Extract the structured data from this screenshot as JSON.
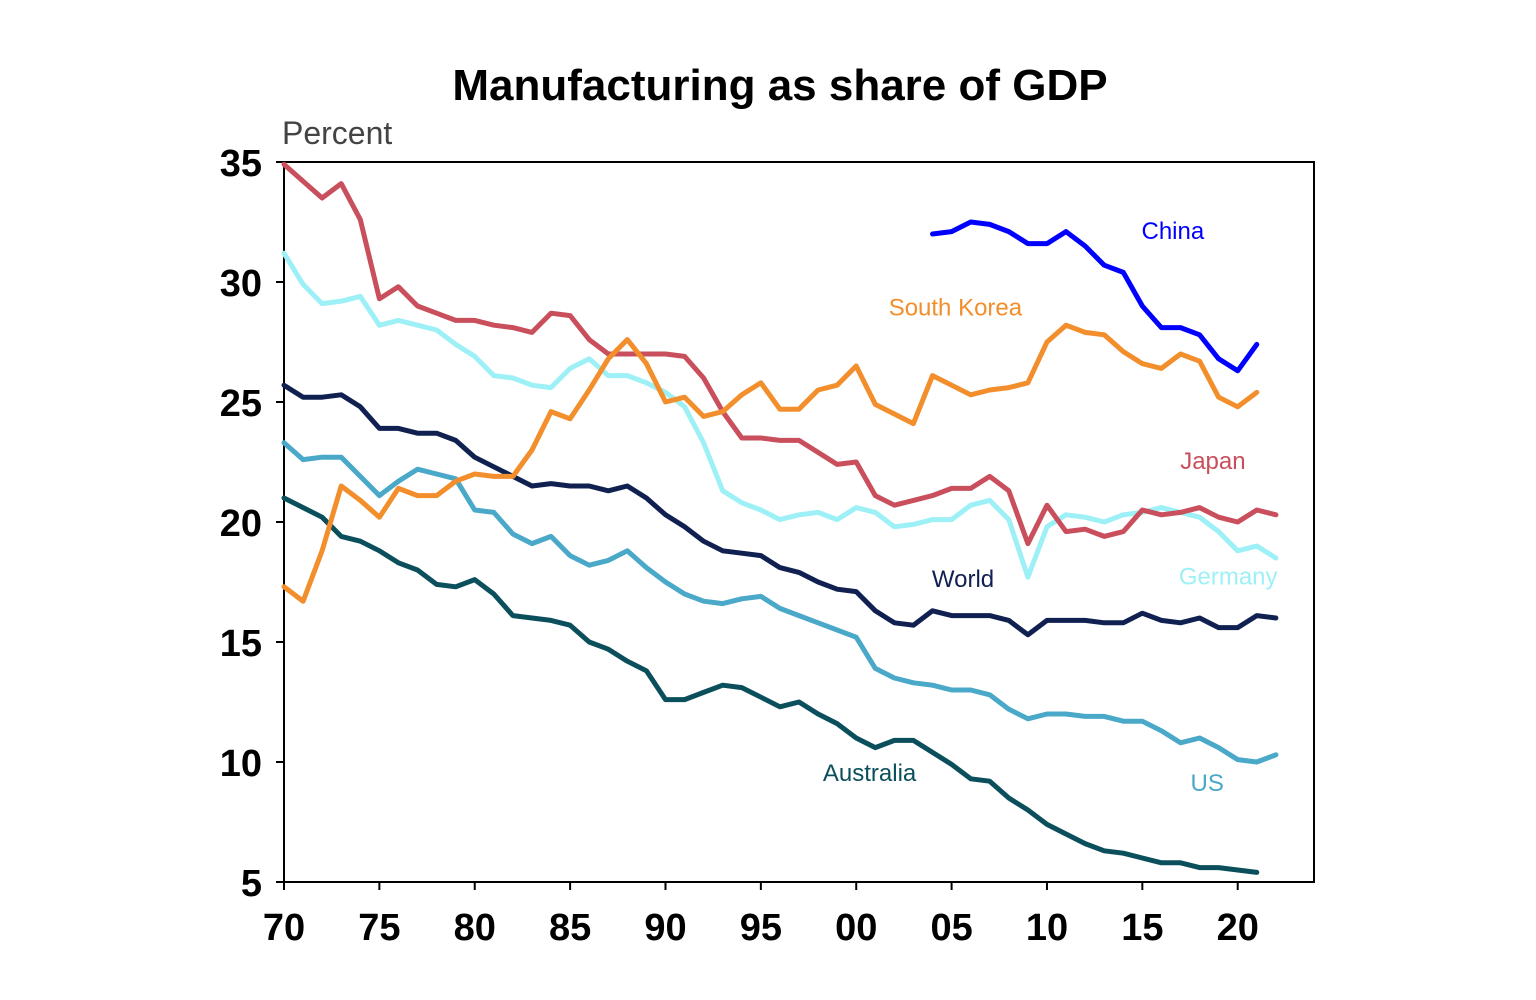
{
  "chart_data": {
    "type": "line",
    "title": "Manufacturing as share of GDP",
    "ylabel": "Percent",
    "xlabel": "",
    "ylim": [
      5,
      35
    ],
    "xlim": [
      1970,
      2024
    ],
    "grid": false,
    "legend": "inline labels",
    "y_ticks": [
      {
        "value": 35,
        "label": "35"
      },
      {
        "value": 30,
        "label": "30"
      },
      {
        "value": 25,
        "label": "25"
      },
      {
        "value": 20,
        "label": "20"
      },
      {
        "value": 15,
        "label": "15"
      },
      {
        "value": 10,
        "label": "10"
      },
      {
        "value": 5,
        "label": "5"
      }
    ],
    "x_ticks": [
      {
        "value": 1970,
        "label": "70"
      },
      {
        "value": 1975,
        "label": "75"
      },
      {
        "value": 1980,
        "label": "80"
      },
      {
        "value": 1985,
        "label": "85"
      },
      {
        "value": 1990,
        "label": "90"
      },
      {
        "value": 1995,
        "label": "95"
      },
      {
        "value": 2000,
        "label": "00"
      },
      {
        "value": 2005,
        "label": "05"
      },
      {
        "value": 2010,
        "label": "10"
      },
      {
        "value": 2015,
        "label": "15"
      },
      {
        "value": 2020,
        "label": "20"
      }
    ],
    "series": [
      {
        "id": "china",
        "name": "China",
        "color": "#0000ff",
        "label_at": {
          "x": 2016.6,
          "y": 31.8
        },
        "x": [
          2004,
          2005,
          2006,
          2007,
          2008,
          2009,
          2010,
          2011,
          2012,
          2013,
          2014,
          2015,
          2016,
          2017,
          2018,
          2019,
          2020,
          2021
        ],
        "y": [
          32.0,
          32.1,
          32.5,
          32.4,
          32.1,
          31.6,
          31.6,
          32.1,
          31.5,
          30.7,
          30.4,
          29.0,
          28.1,
          28.1,
          27.8,
          26.8,
          26.3,
          27.4
        ]
      },
      {
        "id": "south-korea",
        "name": "South Korea",
        "color": "#f28e2b",
        "label_at": {
          "x": 2005.2,
          "y": 28.6
        },
        "x": [
          1970,
          1971,
          1972,
          1973,
          1974,
          1975,
          1976,
          1977,
          1978,
          1979,
          1980,
          1981,
          1982,
          1983,
          1984,
          1985,
          1986,
          1987,
          1988,
          1989,
          1990,
          1991,
          1992,
          1993,
          1994,
          1995,
          1996,
          1997,
          1998,
          1999,
          2000,
          2001,
          2002,
          2003,
          2004,
          2005,
          2006,
          2007,
          2008,
          2009,
          2010,
          2011,
          2012,
          2013,
          2014,
          2015,
          2016,
          2017,
          2018,
          2019,
          2020,
          2021
        ],
        "y": [
          17.3,
          16.7,
          18.8,
          21.5,
          20.9,
          20.2,
          21.4,
          21.1,
          21.1,
          21.7,
          22.0,
          21.9,
          21.9,
          23.0,
          24.6,
          24.3,
          25.5,
          26.8,
          27.6,
          26.6,
          25.0,
          25.2,
          24.4,
          24.6,
          25.3,
          25.8,
          24.7,
          24.7,
          25.5,
          25.7,
          26.5,
          24.9,
          24.5,
          24.1,
          26.1,
          25.7,
          25.3,
          25.5,
          25.6,
          25.8,
          27.5,
          28.2,
          27.9,
          27.8,
          27.1,
          26.6,
          26.4,
          27.0,
          26.7,
          25.2,
          24.8,
          25.4
        ]
      },
      {
        "id": "japan",
        "name": "Japan",
        "color": "#c94f5c",
        "label_at": {
          "x": 2018.7,
          "y": 22.2
        },
        "x": [
          1970,
          1971,
          1972,
          1973,
          1974,
          1975,
          1976,
          1977,
          1978,
          1979,
          1980,
          1981,
          1982,
          1983,
          1984,
          1985,
          1986,
          1987,
          1988,
          1989,
          1990,
          1991,
          1992,
          1993,
          1994,
          1995,
          1996,
          1997,
          1998,
          1999,
          2000,
          2001,
          2002,
          2003,
          2004,
          2005,
          2006,
          2007,
          2008,
          2009,
          2010,
          2011,
          2012,
          2013,
          2014,
          2015,
          2016,
          2017,
          2018,
          2019,
          2020,
          2021,
          2022
        ],
        "y": [
          34.9,
          34.2,
          33.5,
          34.1,
          32.6,
          29.3,
          29.8,
          29.0,
          28.7,
          28.4,
          28.4,
          28.2,
          28.1,
          27.9,
          28.7,
          28.6,
          27.6,
          27.0,
          27.0,
          27.0,
          27.0,
          26.9,
          26.0,
          24.6,
          23.5,
          23.5,
          23.4,
          23.4,
          22.9,
          22.4,
          22.5,
          21.1,
          20.7,
          20.9,
          21.1,
          21.4,
          21.4,
          21.9,
          21.3,
          19.1,
          20.7,
          19.6,
          19.7,
          19.4,
          19.6,
          20.5,
          20.3,
          20.4,
          20.6,
          20.2,
          20.0,
          20.5,
          20.3
        ]
      },
      {
        "id": "germany",
        "name": "Germany",
        "color": "#9ef0f7",
        "label_at": {
          "x": 2019.5,
          "y": 17.4
        },
        "x": [
          1970,
          1971,
          1972,
          1973,
          1974,
          1975,
          1976,
          1977,
          1978,
          1979,
          1980,
          1981,
          1982,
          1983,
          1984,
          1985,
          1986,
          1987,
          1988,
          1989,
          1990,
          1991,
          1992,
          1993,
          1994,
          1995,
          1996,
          1997,
          1998,
          1999,
          2000,
          2001,
          2002,
          2003,
          2004,
          2005,
          2006,
          2007,
          2008,
          2009,
          2010,
          2011,
          2012,
          2013,
          2014,
          2015,
          2016,
          2017,
          2018,
          2019,
          2020,
          2021,
          2022
        ],
        "y": [
          31.2,
          29.9,
          29.1,
          29.2,
          29.4,
          28.2,
          28.4,
          28.2,
          28.0,
          27.4,
          26.9,
          26.1,
          26.0,
          25.7,
          25.6,
          26.4,
          26.8,
          26.1,
          26.1,
          25.8,
          25.4,
          24.8,
          23.3,
          21.3,
          20.8,
          20.5,
          20.1,
          20.3,
          20.4,
          20.1,
          20.6,
          20.4,
          19.8,
          19.9,
          20.1,
          20.1,
          20.7,
          20.9,
          20.1,
          17.7,
          19.8,
          20.3,
          20.2,
          20.0,
          20.3,
          20.4,
          20.6,
          20.4,
          20.2,
          19.6,
          18.8,
          19.0,
          18.5
        ]
      },
      {
        "id": "world",
        "name": "World",
        "color": "#102050",
        "label_at": {
          "x": 2005.6,
          "y": 17.3
        },
        "x": [
          1970,
          1971,
          1972,
          1973,
          1974,
          1975,
          1976,
          1977,
          1978,
          1979,
          1980,
          1981,
          1982,
          1983,
          1984,
          1985,
          1986,
          1987,
          1988,
          1989,
          1990,
          1991,
          1992,
          1993,
          1994,
          1995,
          1996,
          1997,
          1998,
          1999,
          2000,
          2001,
          2002,
          2003,
          2004,
          2005,
          2006,
          2007,
          2008,
          2009,
          2010,
          2011,
          2012,
          2013,
          2014,
          2015,
          2016,
          2017,
          2018,
          2019,
          2020,
          2021,
          2022
        ],
        "y": [
          25.7,
          25.2,
          25.2,
          25.3,
          24.8,
          23.9,
          23.9,
          23.7,
          23.7,
          23.4,
          22.7,
          22.3,
          21.9,
          21.5,
          21.6,
          21.5,
          21.5,
          21.3,
          21.5,
          21.0,
          20.3,
          19.8,
          19.2,
          18.8,
          18.7,
          18.6,
          18.1,
          17.9,
          17.5,
          17.2,
          17.1,
          16.3,
          15.8,
          15.7,
          16.3,
          16.1,
          16.1,
          16.1,
          15.9,
          15.3,
          15.9,
          15.9,
          15.9,
          15.8,
          15.8,
          16.2,
          15.9,
          15.8,
          16.0,
          15.6,
          15.6,
          16.1,
          16.0
        ]
      },
      {
        "id": "us",
        "name": "US",
        "color": "#4aa8c8",
        "label_at": {
          "x": 2018.4,
          "y": 8.8
        },
        "x": [
          1970,
          1971,
          1972,
          1973,
          1974,
          1975,
          1976,
          1977,
          1978,
          1979,
          1980,
          1981,
          1982,
          1983,
          1984,
          1985,
          1986,
          1987,
          1988,
          1989,
          1990,
          1991,
          1992,
          1993,
          1994,
          1995,
          1996,
          1997,
          1998,
          1999,
          2000,
          2001,
          2002,
          2003,
          2004,
          2005,
          2006,
          2007,
          2008,
          2009,
          2010,
          2011,
          2012,
          2013,
          2014,
          2015,
          2016,
          2017,
          2018,
          2019,
          2020,
          2021,
          2022
        ],
        "y": [
          23.3,
          22.6,
          22.7,
          22.7,
          21.9,
          21.1,
          21.7,
          22.2,
          22.0,
          21.8,
          20.5,
          20.4,
          19.5,
          19.1,
          19.4,
          18.6,
          18.2,
          18.4,
          18.8,
          18.1,
          17.5,
          17.0,
          16.7,
          16.6,
          16.8,
          16.9,
          16.4,
          16.1,
          15.8,
          15.5,
          15.2,
          13.9,
          13.5,
          13.3,
          13.2,
          13.0,
          13.0,
          12.8,
          12.2,
          11.8,
          12.0,
          12.0,
          11.9,
          11.9,
          11.7,
          11.7,
          11.3,
          10.8,
          11.0,
          10.6,
          10.1,
          10.0,
          10.3
        ]
      },
      {
        "id": "australia",
        "name": "Australia",
        "color": "#0b4f5c",
        "label_at": {
          "x": 2000.7,
          "y": 9.2
        },
        "x": [
          1970,
          1971,
          1972,
          1973,
          1974,
          1975,
          1976,
          1977,
          1978,
          1979,
          1980,
          1981,
          1982,
          1983,
          1984,
          1985,
          1986,
          1987,
          1988,
          1989,
          1990,
          1991,
          1992,
          1993,
          1994,
          1995,
          1996,
          1997,
          1998,
          1999,
          2000,
          2001,
          2002,
          2003,
          2004,
          2005,
          2006,
          2007,
          2008,
          2009,
          2010,
          2011,
          2012,
          2013,
          2014,
          2015,
          2016,
          2017,
          2018,
          2019,
          2020,
          2021
        ],
        "y": [
          21.0,
          20.6,
          20.2,
          19.4,
          19.2,
          18.8,
          18.3,
          18.0,
          17.4,
          17.3,
          17.6,
          17.0,
          16.1,
          16.0,
          15.9,
          15.7,
          15.0,
          14.7,
          14.2,
          13.8,
          12.6,
          12.6,
          12.9,
          13.2,
          13.1,
          12.7,
          12.3,
          12.5,
          12.0,
          11.6,
          11.0,
          10.6,
          10.9,
          10.9,
          10.4,
          9.9,
          9.3,
          9.2,
          8.5,
          8.0,
          7.4,
          7.0,
          6.6,
          6.3,
          6.2,
          6.0,
          5.8,
          5.8,
          5.6,
          5.6,
          5.5,
          5.4
        ]
      }
    ]
  }
}
